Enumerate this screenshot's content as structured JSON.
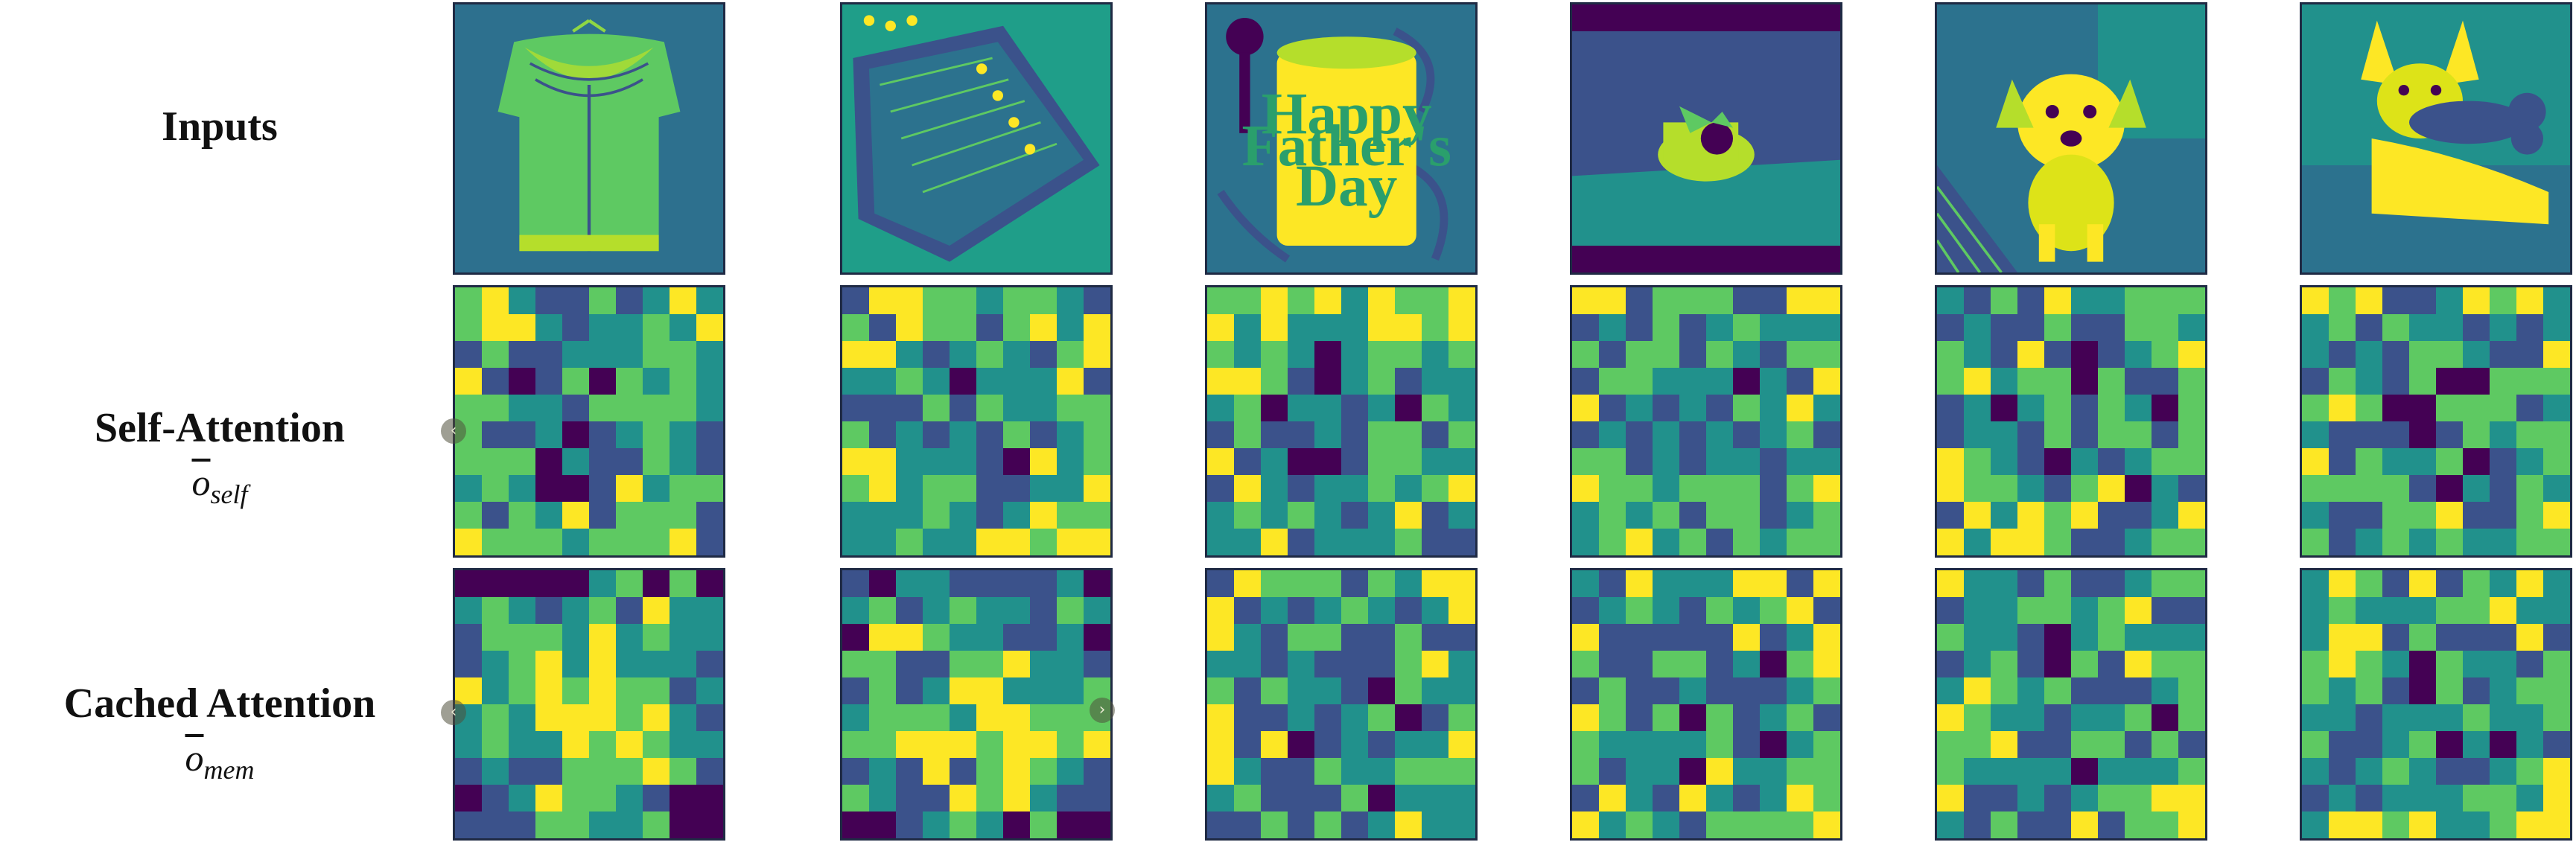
{
  "rows": {
    "inputs": {
      "label": "Inputs"
    },
    "self_attention": {
      "label": "Self-Attention",
      "symbol": "o",
      "subscript": "self"
    },
    "cached_attention": {
      "label": "Cached Attention",
      "symbol": "o",
      "subscript": "mem"
    }
  },
  "columns": [
    {
      "subject": "knit cardigan on hanger"
    },
    {
      "subject": "knit cardigan with buttons"
    },
    {
      "subject": "toilet paper roll on holder",
      "photo_text": [
        "Happy",
        "Father's",
        "Day"
      ]
    },
    {
      "subject": "toilet paper roll with bow"
    },
    {
      "subject": "small fluffy dog sitting"
    },
    {
      "subject": "chihuahua with bone toy"
    }
  ],
  "colormap": [
    "#440154",
    "#3b528b",
    "#21918c",
    "#5ec962",
    "#fde725"
  ],
  "nav_icons": [
    "circle-left-icon",
    "circle-right-icon"
  ]
}
